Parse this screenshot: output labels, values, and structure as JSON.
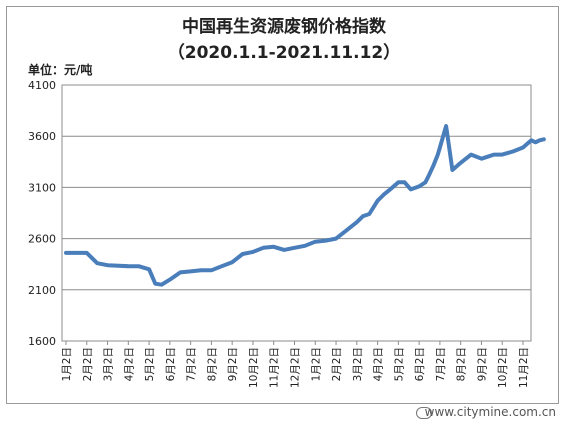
{
  "chart_data": {
    "type": "line",
    "title": "中国再生资源废钢价格指数",
    "subtitle": "（2020.1.1-2021.11.12）",
    "ylabel": "单位：元/吨",
    "xlabel": "",
    "ylim": [
      1600,
      4100
    ],
    "yticks": [
      1600,
      2100,
      2600,
      3100,
      3600,
      4100
    ],
    "grid": true,
    "legend": "none",
    "line_color": "#4A7EBB",
    "categories": [
      "1月2日",
      "2月2日",
      "3月2日",
      "4月2日",
      "5月2日",
      "6月2日",
      "7月2日",
      "8月2日",
      "9月2日",
      "10月2日",
      "11月2日",
      "12月2日",
      "1月2日",
      "2月2日",
      "3月2日",
      "4月2日",
      "5月2日",
      "6月2日",
      "7月2日",
      "8月2日",
      "9月2日",
      "10月2日",
      "11月2日"
    ],
    "x": [
      0,
      1,
      1.5,
      2,
      3,
      3.5,
      4,
      4.3,
      4.6,
      5,
      5.5,
      6,
      6.5,
      7,
      7.5,
      8,
      8.5,
      9,
      9.5,
      10,
      10.5,
      11,
      11.5,
      12,
      12.5,
      13,
      13.5,
      14,
      14.3,
      14.6,
      15,
      15.3,
      15.6,
      16,
      16.3,
      16.6,
      17,
      17.3,
      17.5,
      17.7,
      17.9,
      18,
      18.3,
      18.6,
      19,
      19.5,
      20,
      20.3,
      20.6,
      21,
      21.5,
      22,
      22.4,
      22.6,
      22.8,
      23
    ],
    "values": [
      2460,
      2460,
      2360,
      2340,
      2330,
      2330,
      2300,
      2160,
      2150,
      2200,
      2270,
      2280,
      2290,
      2290,
      2330,
      2370,
      2450,
      2470,
      2510,
      2520,
      2490,
      2510,
      2530,
      2570,
      2580,
      2600,
      2680,
      2760,
      2820,
      2840,
      2970,
      3030,
      3080,
      3150,
      3150,
      3080,
      3110,
      3150,
      3230,
      3320,
      3420,
      3490,
      3700,
      3270,
      3340,
      3420,
      3380,
      3400,
      3420,
      3420,
      3450,
      3490,
      3560,
      3540,
      3560,
      3570
    ]
  },
  "watermark": "www.citymine.com.cn"
}
